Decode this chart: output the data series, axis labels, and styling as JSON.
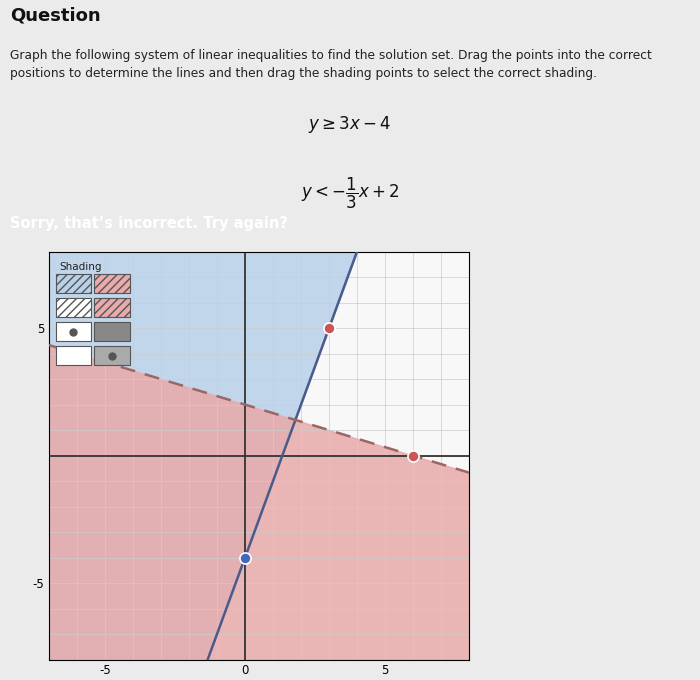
{
  "title_text": "Question",
  "description": "Graph the following system of linear inequalities to find the solution set. Drag the points into the correct\npositions to determine the lines and then drag the shading points to select the correct shading.",
  "xlim": [
    -7,
    8
  ],
  "ylim": [
    -8,
    8
  ],
  "xticks_labeled": [
    -5,
    0,
    5
  ],
  "yticks_labeled": [
    -5,
    5
  ],
  "line1_slope": 3,
  "line1_intercept": -4,
  "line2_slope": -0.3333333333,
  "line2_intercept": 2,
  "shade_blue_color": "#b8d0e8",
  "shade_pink_color": "#e8aaaa",
  "line1_color": "#4a5a8a",
  "line2_color": "#9a6666",
  "pt_blue_x": 0,
  "pt_blue_y": -4,
  "pt_red1_x": 3,
  "pt_red1_y": 5,
  "pt_red2_x": 6,
  "pt_red2_y": 0,
  "error_bar_color": "#c0392b",
  "error_bar_text": "Sorry, that’s incorrect. Try again?",
  "bg_color": "#ebebeb",
  "graph_bg": "#f5f5f5",
  "shading_box_label": "Shading"
}
